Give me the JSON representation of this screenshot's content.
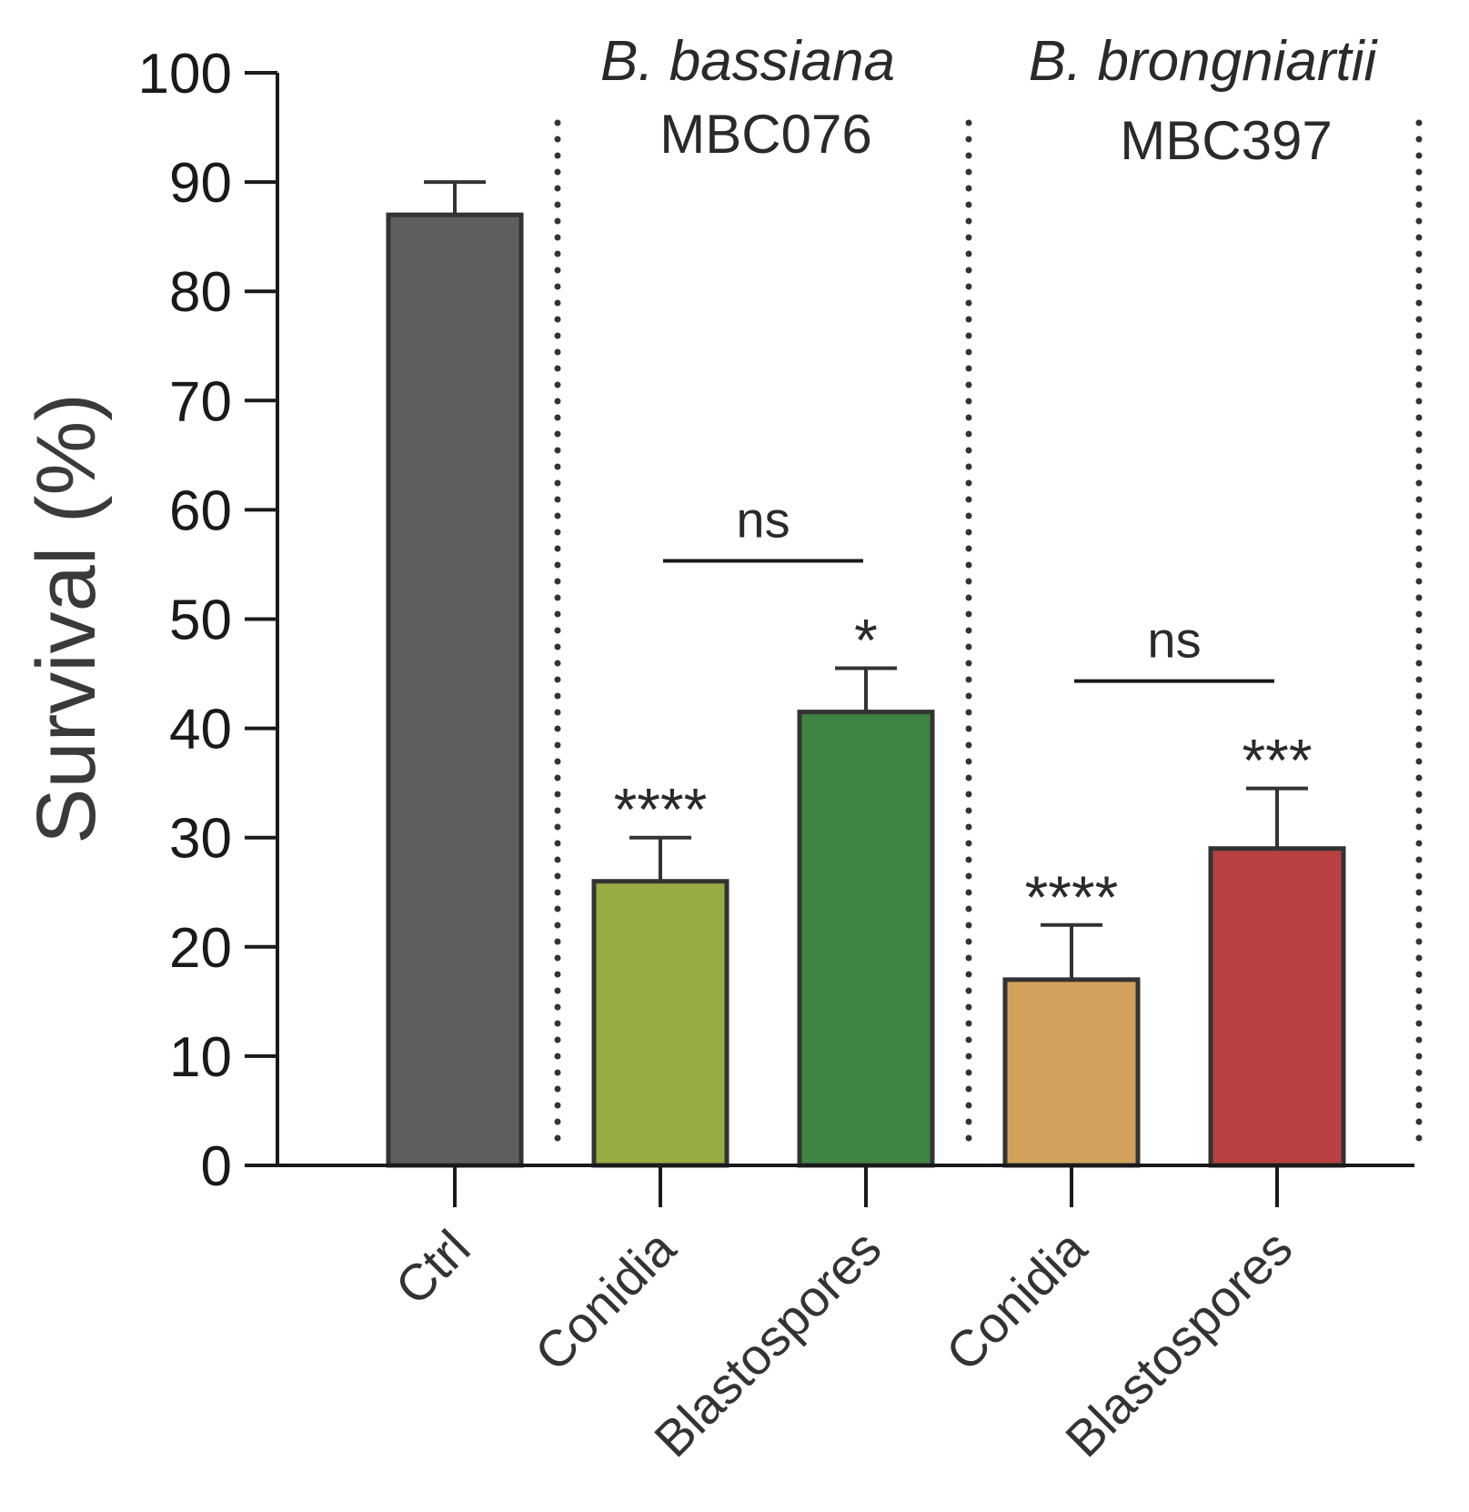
{
  "chart_data": {
    "type": "bar",
    "ylabel": "Survival (%)",
    "ylim": [
      0,
      100
    ],
    "yticks": [
      0,
      10,
      20,
      30,
      40,
      50,
      60,
      70,
      80,
      90,
      100
    ],
    "categories": [
      "Ctrl",
      "Conidia",
      "Blastospores",
      "Conidia",
      "Blastospores"
    ],
    "values": [
      87,
      26,
      41.5,
      17,
      29
    ],
    "errors": [
      3,
      4,
      4,
      5,
      5.5
    ],
    "colors": [
      "#5f5f5f",
      "#97ad43",
      "#3f8440",
      "#d2a25c",
      "#b94142"
    ],
    "significance": [
      "",
      "****",
      "*",
      "****",
      "***"
    ],
    "groups": [
      {
        "title": "B. bassiana",
        "subtitle": "MBC076",
        "members": [
          1,
          2
        ],
        "comparison": "ns"
      },
      {
        "title": "B. brongniartii",
        "subtitle": "MBC397",
        "members": [
          3,
          4
        ],
        "comparison": "ns"
      }
    ]
  }
}
